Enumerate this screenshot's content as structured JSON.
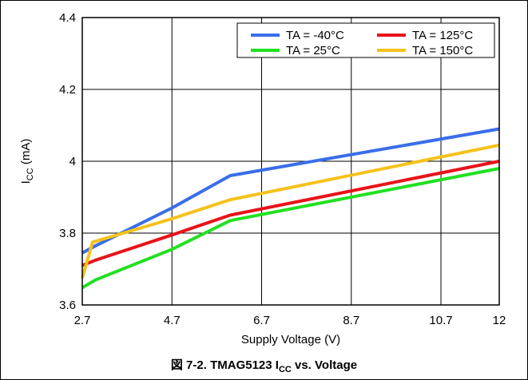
{
  "caption": {
    "prefix": "図 7-2. TMAG5123 I",
    "sub": "CC",
    "suffix": " vs. Voltage"
  },
  "chart_data": {
    "type": "line",
    "title": "",
    "xlabel": "Supply Voltage (V)",
    "ylabel": {
      "main": "I",
      "sub": "CC",
      "unit": " (mA)"
    },
    "xlim": [
      2.7,
      12
    ],
    "ylim": [
      3.6,
      4.4
    ],
    "x_ticks": [
      2.7,
      4.7,
      6.7,
      8.7,
      10.7,
      12
    ],
    "y_ticks": [
      3.6,
      3.8,
      4,
      4.2,
      4.4
    ],
    "x_tick_labels": [
      "2.7",
      "4.7",
      "6.7",
      "8.7",
      "10.7",
      "12"
    ],
    "y_tick_labels": [
      "3.6",
      "3.8",
      "4",
      "4.2",
      "4.4"
    ],
    "grid": true,
    "legend_position": "top-right",
    "series": [
      {
        "name": "TA = -40°C",
        "color": "#3a6ee8",
        "points": [
          [
            2.7,
            3.745
          ],
          [
            3.0,
            3.765
          ],
          [
            4.7,
            3.87
          ],
          [
            6.0,
            3.96
          ],
          [
            12,
            4.09
          ]
        ]
      },
      {
        "name": "TA = 125°C",
        "color": "#e8131a",
        "points": [
          [
            2.7,
            3.71
          ],
          [
            3.0,
            3.725
          ],
          [
            4.7,
            3.795
          ],
          [
            6.0,
            3.85
          ],
          [
            12,
            4.0
          ]
        ]
      },
      {
        "name": "TA = 25°C",
        "color": "#22e022",
        "points": [
          [
            2.7,
            3.648
          ],
          [
            3.0,
            3.67
          ],
          [
            4.7,
            3.755
          ],
          [
            6.0,
            3.835
          ],
          [
            12,
            3.98
          ]
        ]
      },
      {
        "name": "TA = 150°C",
        "color": "#f5c21b",
        "points": [
          [
            2.7,
            3.675
          ],
          [
            2.93,
            3.775
          ],
          [
            4.7,
            3.84
          ],
          [
            6.0,
            3.893
          ],
          [
            12,
            4.045
          ]
        ]
      }
    ]
  }
}
